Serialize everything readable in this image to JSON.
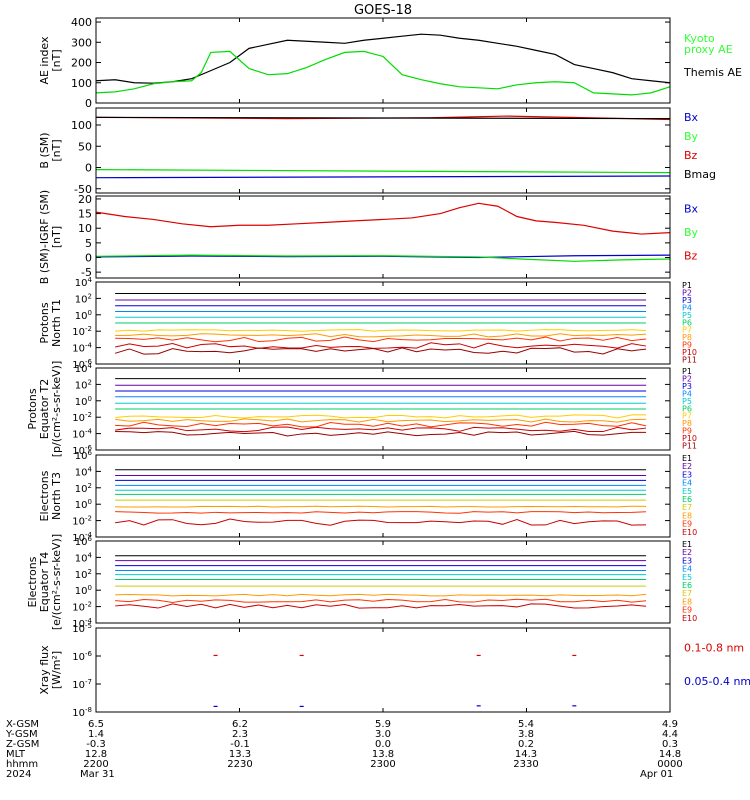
{
  "title": "GOES-18",
  "colors": {
    "black": "#000000",
    "green": "#00dd00",
    "bright_green": "#33ff33",
    "blue": "#0000cc",
    "red": "#dd0000",
    "p_colors": [
      "#000000",
      "#6600aa",
      "#0000dd",
      "#0088ff",
      "#00cccc",
      "#00cc66",
      "#ffcc00",
      "#ff9900",
      "#ff3300",
      "#cc0000",
      "#990000"
    ],
    "e_colors": [
      "#000000",
      "#6600aa",
      "#0000dd",
      "#0088ff",
      "#00cccc",
      "#00cc66",
      "#cccc00",
      "#ff9900",
      "#ff3300",
      "#cc0000"
    ]
  },
  "chart_data": [
    {
      "id": "ae",
      "type": "line",
      "ylabel": [
        "AE index",
        "[nT]"
      ],
      "ylim": [
        0,
        420
      ],
      "yticks": [
        0,
        100,
        200,
        300,
        400
      ],
      "yticklabels": [
        "0",
        "100",
        "200",
        "300",
        "400"
      ],
      "xlim": [
        0,
        60
      ],
      "series": [
        {
          "name": "Themis AE",
          "color": "#000000",
          "x": [
            0,
            2,
            4,
            6,
            8,
            10,
            12,
            14,
            16,
            18,
            20,
            22,
            24,
            26,
            28,
            30,
            32,
            34,
            36,
            38,
            40,
            42,
            44,
            46,
            48,
            50,
            52,
            54,
            56,
            58,
            60
          ],
          "values": [
            110,
            115,
            100,
            98,
            105,
            120,
            160,
            200,
            270,
            290,
            310,
            305,
            300,
            295,
            310,
            320,
            330,
            340,
            335,
            320,
            310,
            295,
            280,
            260,
            240,
            190,
            170,
            150,
            120,
            110,
            100
          ]
        },
        {
          "name": [
            "Kyoto",
            "proxy AE"
          ],
          "color": "#00dd00",
          "x": [
            0,
            2,
            4,
            6,
            8,
            10,
            11,
            12,
            14,
            16,
            18,
            20,
            22,
            24,
            26,
            28,
            30,
            32,
            34,
            36,
            38,
            40,
            42,
            44,
            46,
            48,
            50,
            52,
            54,
            56,
            58,
            60
          ],
          "values": [
            50,
            55,
            70,
            95,
            105,
            110,
            150,
            250,
            255,
            170,
            140,
            145,
            175,
            215,
            250,
            255,
            230,
            140,
            115,
            95,
            80,
            75,
            70,
            90,
            100,
            105,
            100,
            50,
            45,
            40,
            50,
            80
          ]
        }
      ],
      "legend": [
        {
          "label": [
            "Kyoto",
            "proxy AE"
          ],
          "color": "#33ff33"
        },
        {
          "label": [
            "Themis AE"
          ],
          "color": "#000000"
        }
      ]
    },
    {
      "id": "bsm",
      "type": "line",
      "ylabel": [
        "B (SM)",
        "[nT]"
      ],
      "ylim": [
        -60,
        140
      ],
      "yticks": [
        -50,
        0,
        50,
        100
      ],
      "yticklabels": [
        "-50",
        "0",
        "50",
        "100"
      ],
      "xlim": [
        0,
        60
      ],
      "series": [
        {
          "name": "Bx",
          "color": "#0000cc",
          "x": [
            0,
            60
          ],
          "values": [
            -24,
            -20
          ]
        },
        {
          "name": "By",
          "color": "#00dd00",
          "x": [
            0,
            60
          ],
          "values": [
            -5,
            -12
          ]
        },
        {
          "name": "Bz",
          "color": "#dd0000",
          "x": [
            0,
            20,
            35,
            43,
            60
          ],
          "values": [
            118,
            115,
            117,
            121,
            113
          ]
        },
        {
          "name": "Bmag",
          "color": "#000000",
          "x": [
            0,
            60
          ],
          "values": [
            118,
            115
          ]
        }
      ],
      "legend": [
        {
          "label": [
            "Bx"
          ],
          "color": "#0000cc"
        },
        {
          "label": [
            "By"
          ],
          "color": "#33ff33"
        },
        {
          "label": [
            "Bz"
          ],
          "color": "#dd0000"
        },
        {
          "label": [
            "Bmag"
          ],
          "color": "#000000"
        }
      ]
    },
    {
      "id": "bdiff",
      "type": "line",
      "ylabel": [
        "B (SM)-IGRF (SM)",
        "[nT]"
      ],
      "ylim": [
        -7,
        21
      ],
      "yticks": [
        -5,
        0,
        5,
        10,
        15,
        20
      ],
      "yticklabels": [
        "-5",
        "0",
        "5",
        "10",
        "15",
        "20"
      ],
      "xlim": [
        0,
        60
      ],
      "series": [
        {
          "name": "Bx",
          "color": "#0000cc",
          "x": [
            0,
            10,
            20,
            30,
            40,
            50,
            60
          ],
          "values": [
            0.2,
            0.5,
            0.3,
            0.4,
            0.0,
            0.6,
            0.8
          ]
        },
        {
          "name": "By",
          "color": "#00dd00",
          "x": [
            0,
            10,
            20,
            30,
            40,
            45,
            50,
            55,
            60
          ],
          "values": [
            0.4,
            0.8,
            0.5,
            0.6,
            0.2,
            -0.6,
            -1.3,
            -0.8,
            -0.5
          ]
        },
        {
          "name": "Bz",
          "color": "#dd0000",
          "x": [
            0,
            3,
            6,
            9,
            12,
            15,
            18,
            21,
            24,
            27,
            30,
            33,
            36,
            38,
            40,
            42,
            44,
            46,
            48,
            51,
            54,
            57,
            60
          ],
          "values": [
            15.5,
            14,
            13,
            11.5,
            10.5,
            11,
            11,
            11.5,
            12,
            12.5,
            13,
            13.5,
            15,
            17,
            18.5,
            17.5,
            14,
            12.5,
            12,
            11,
            9,
            8,
            8.5
          ]
        }
      ],
      "legend": [
        {
          "label": [
            "Bx"
          ],
          "color": "#0000cc"
        },
        {
          "label": [
            "By"
          ],
          "color": "#33ff33"
        },
        {
          "label": [
            "Bz"
          ],
          "color": "#dd0000"
        }
      ]
    },
    {
      "id": "protons_north",
      "type": "line",
      "log": true,
      "ylabel": [
        "Protons",
        "North T1"
      ],
      "ylim": [
        -6,
        4
      ],
      "yticks": [
        -6,
        -4,
        -2,
        0,
        2,
        4
      ],
      "levels": [
        2.6,
        1.8,
        1.1,
        0.4,
        -0.3,
        -1.0,
        -1.9,
        -2.5,
        -3.0,
        -3.8,
        -4.4
      ],
      "noise": [
        0,
        0,
        0,
        0,
        0,
        0,
        0.1,
        0.2,
        0.3,
        0.4,
        0.4
      ],
      "labels": [
        "P1",
        "P2",
        "P3",
        "P4",
        "P5",
        "P6",
        "P7",
        "P8",
        "P9",
        "P10",
        "P11"
      ]
    },
    {
      "id": "protons_equator",
      "type": "line",
      "log": true,
      "ylabel": [
        "Protons",
        "Equator T2",
        "[p/(cm²-s-sr-keV)]"
      ],
      "ylim": [
        -6,
        4
      ],
      "yticks": [
        -6,
        -4,
        -2,
        0,
        2,
        4
      ],
      "levels": [
        2.7,
        1.9,
        1.2,
        0.5,
        -0.3,
        -1.0,
        -1.9,
        -2.4,
        -2.9,
        -3.5,
        -4.0
      ],
      "noise": [
        0,
        0,
        0,
        0,
        0,
        0,
        0.2,
        0.2,
        0.3,
        0.3,
        0.3
      ],
      "labels": [
        "P1",
        "P2",
        "P3",
        "P4",
        "P5",
        "P6",
        "P7",
        "P8",
        "P9",
        "P10",
        "P11"
      ]
    },
    {
      "id": "electrons_north",
      "type": "line",
      "log": true,
      "ylabel": [
        "Electrons",
        "North T3"
      ],
      "ylim": [
        -4,
        6
      ],
      "yticks": [
        -4,
        -2,
        0,
        2,
        4,
        6
      ],
      "levels": [
        4.2,
        3.5,
        2.9,
        2.3,
        1.7,
        1.2,
        0.5,
        -0.3,
        -1.0,
        -2.2
      ],
      "noise": [
        0,
        0,
        0,
        0,
        0,
        0,
        0,
        0.05,
        0.1,
        0.4
      ],
      "labels": [
        "E1",
        "E2",
        "E3",
        "E4",
        "E5",
        "E6",
        "E7",
        "E8",
        "E9",
        "E10"
      ]
    },
    {
      "id": "electrons_equator",
      "type": "line",
      "log": true,
      "ylabel": [
        "Electrons",
        "Equator T4",
        "[e/(cm²-s-sr-keV)]"
      ],
      "ylim": [
        -4,
        6
      ],
      "yticks": [
        -4,
        -2,
        0,
        2,
        4,
        6
      ],
      "levels": [
        4.2,
        3.6,
        3.0,
        2.4,
        1.9,
        1.3,
        0.5,
        -0.6,
        -1.3,
        -1.9
      ],
      "noise": [
        0,
        0,
        0,
        0,
        0,
        0,
        0,
        0.1,
        0.2,
        0.3
      ],
      "labels": [
        "E1",
        "E2",
        "E3",
        "E4",
        "E5",
        "E6",
        "E7",
        "E8",
        "E9",
        "E10"
      ]
    },
    {
      "id": "xray",
      "type": "scatter",
      "log": true,
      "ylabel": [
        "Xray flux",
        "[W/m²]"
      ],
      "ylim": [
        -8,
        -5
      ],
      "yticks": [
        -8,
        -7,
        -6,
        -5
      ],
      "series": [
        {
          "name": "0.1-0.8 nm",
          "color": "#dd0000",
          "x": [
            12.5,
            21.5,
            40,
            50
          ],
          "values": [
            -5.98,
            -5.98,
            -5.98,
            -5.98
          ]
        },
        {
          "name": "0.05-0.4 nm",
          "color": "#0000cc",
          "x": [
            12.5,
            21.5,
            40,
            50
          ],
          "values": [
            -7.8,
            -7.8,
            -7.78,
            -7.78
          ]
        }
      ],
      "legend": [
        {
          "label": [
            "0.1-0.8 nm"
          ],
          "color": "#dd0000"
        },
        {
          "label": [
            "0.05-0.4 nm"
          ],
          "color": "#0000cc"
        }
      ]
    }
  ],
  "footer": {
    "row_labels": [
      "X-GSM",
      "Y-GSM",
      "Z-GSM",
      "MLT",
      "hhmm",
      "2024"
    ],
    "columns": [
      [
        "6.5",
        "1.4",
        "-0.3",
        "12.8",
        "2200",
        "Mar 31"
      ],
      [
        "6.2",
        "2.3",
        "-0.1",
        "13.3",
        "2230",
        ""
      ],
      [
        "5.9",
        "3.0",
        "0.0",
        "13.8",
        "2300",
        ""
      ],
      [
        "5.4",
        "3.8",
        "0.2",
        "14.3",
        "2330",
        ""
      ],
      [
        "4.9",
        "4.4",
        "0.3",
        "14.8",
        "0000",
        "Apr 01"
      ]
    ]
  }
}
